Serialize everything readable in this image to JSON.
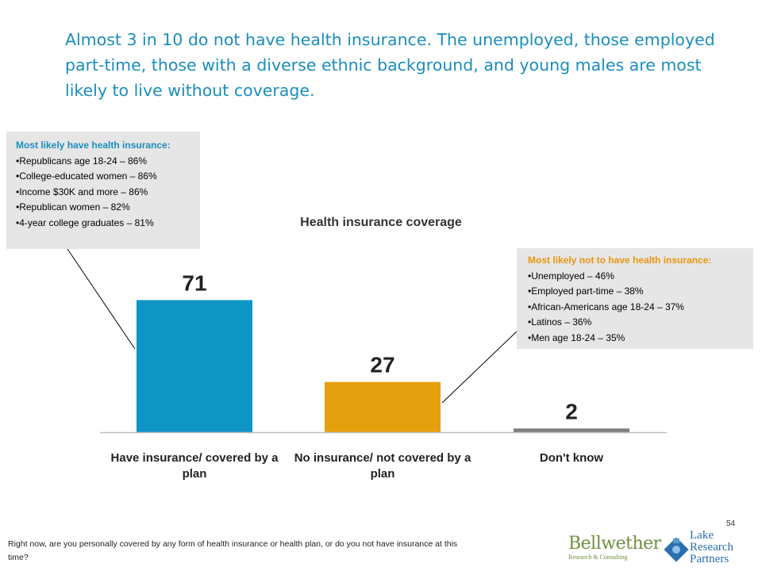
{
  "slide": {
    "headline": "Almost 3 in 10 do not have health insurance. The unemployed, those employed part-time, those with a diverse ethnic background, and young males are most likely to live without coverage.",
    "page_number": "54",
    "footnote": "Right now, are you personally covered by any form of health insurance or health plan, or do you not have insurance at this time?"
  },
  "callouts": {
    "insured": {
      "title": "Most likely have health insurance:",
      "items": [
        "Republicans age 18-24 – 86%",
        "College-educated women – 86%",
        "Income $30K and more – 86%",
        "Republican women – 82%",
        "4-year college graduates – 81%"
      ]
    },
    "uninsured": {
      "title": "Most likely not to have health insurance:",
      "items": [
        "Unemployed – 46%",
        "Employed part-time – 38%",
        "African-Americans age 18-24 – 37%",
        "Latinos – 36%",
        "Men age 18-24 – 35%"
      ]
    }
  },
  "chart_data": {
    "type": "bar",
    "title": "Health insurance coverage",
    "categories": [
      "Have insurance/ covered by a plan",
      "No insurance/ not covered by a plan",
      "Don't know"
    ],
    "category_lines": [
      [
        "Have insurance/ covered by a",
        "plan"
      ],
      [
        "No insurance/ not covered by a",
        "plan"
      ],
      [
        "Don't know"
      ]
    ],
    "values": [
      71,
      27,
      2
    ],
    "colors": [
      "#0f95c4",
      "#e5a00f",
      "#7f7f7f"
    ],
    "ylim": [
      0,
      75
    ],
    "grid": false,
    "legend": "none"
  },
  "logos": {
    "bellwether": "Bellwether",
    "bellwether_sub": "Research & Consulting",
    "lake_line1": "Lake",
    "lake_line2": "Research",
    "lake_line3": "Partners"
  }
}
